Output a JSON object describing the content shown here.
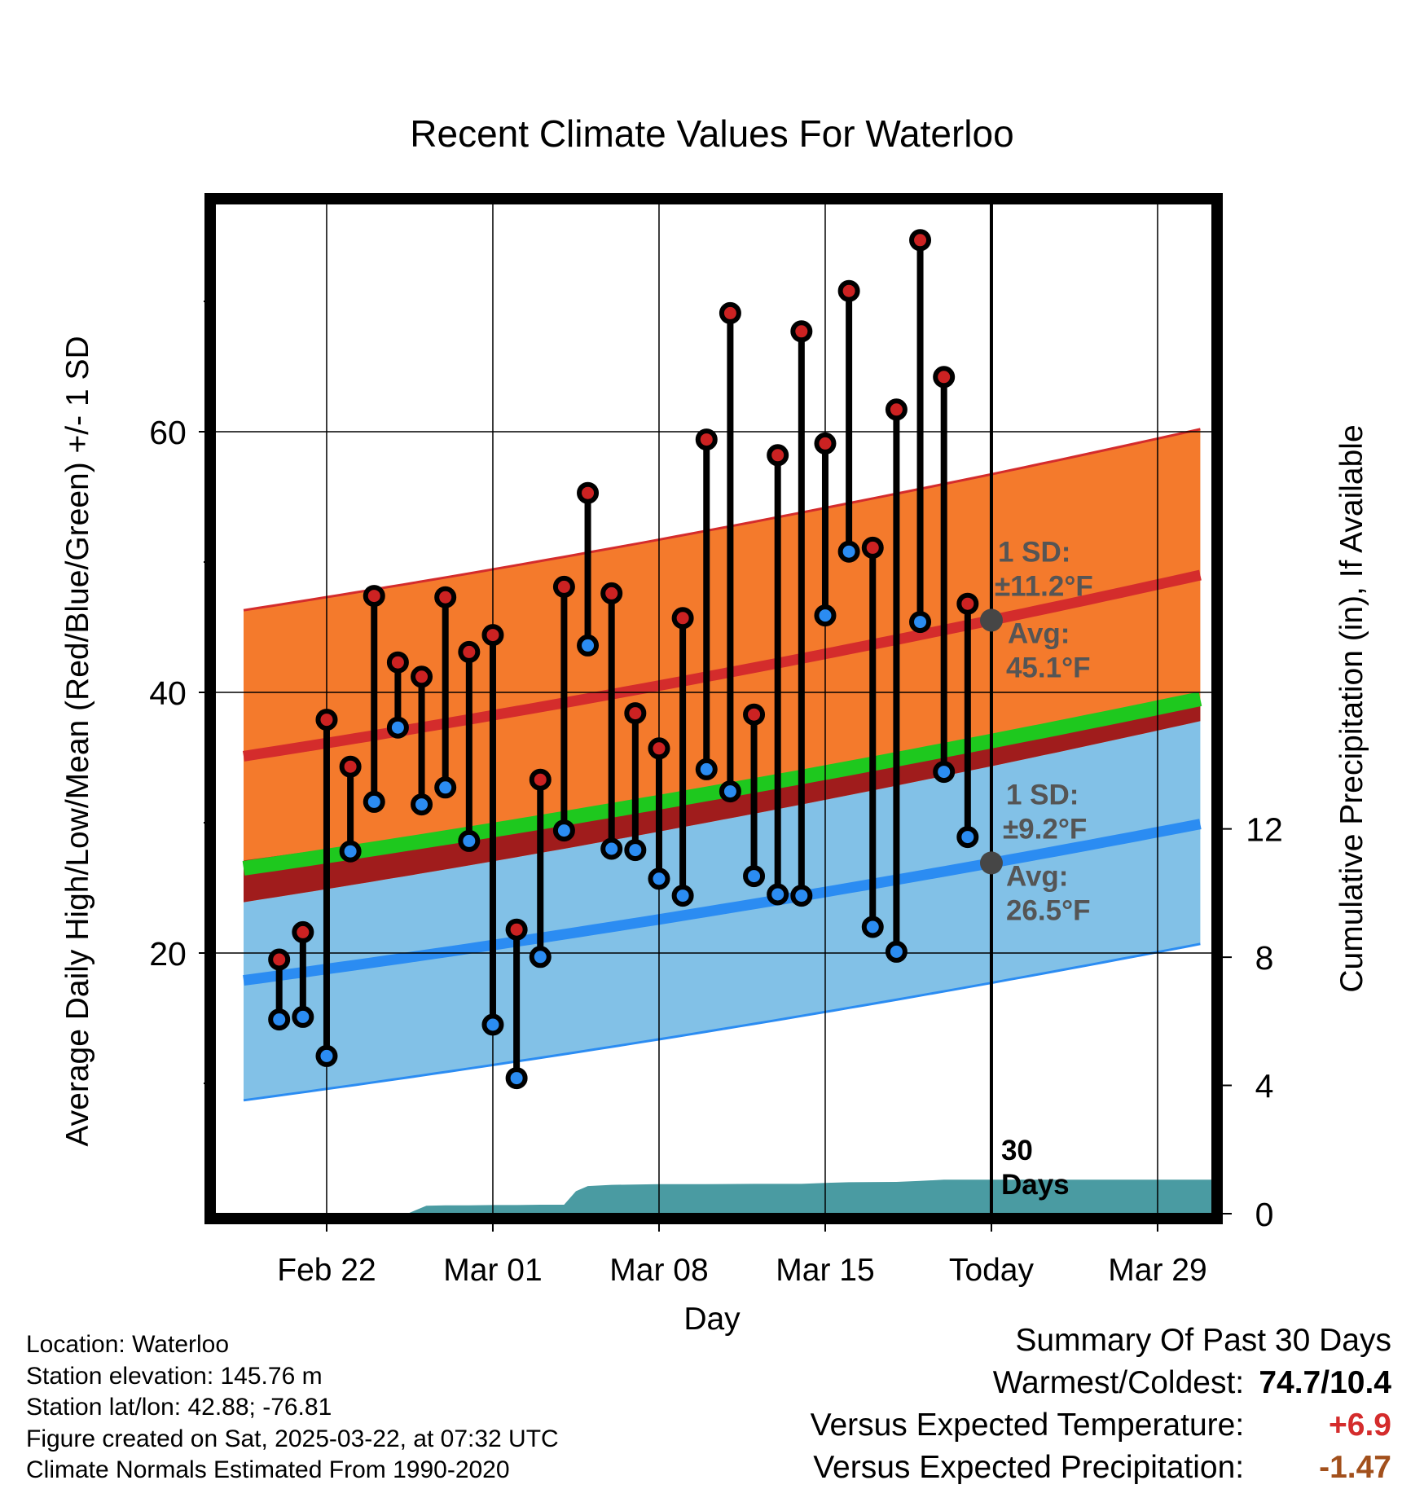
{
  "chart_data": {
    "type": "line",
    "title": "Recent Climate Values For Waterloo",
    "xlabel": "Day",
    "ylabel": "Average Daily High/Low/Mean (Red/Blue/Green) +/- 1 SD",
    "y2label": "Cumulative Precipitation (in), If Available",
    "x_ticks": [
      {
        "day": 4,
        "label": "Feb 22"
      },
      {
        "day": 11,
        "label": "Mar 01"
      },
      {
        "day": 18,
        "label": "Mar 08"
      },
      {
        "day": 25,
        "label": "Mar 15"
      },
      {
        "day": 32,
        "label": "Today"
      },
      {
        "day": 39,
        "label": "Mar 29"
      }
    ],
    "xlim": [
      -0.7,
      41.3
    ],
    "ylim": [
      0,
      77.5
    ],
    "y_ticks": [
      20,
      40,
      60
    ],
    "y_minor_ticks": [
      10,
      30,
      50,
      70
    ],
    "y2lim": [
      0,
      31.5
    ],
    "y2_ticks": [
      0,
      4,
      8,
      12
    ],
    "today_day": 32,
    "normals": {
      "day_range": [
        0.5,
        40.8
      ],
      "high_avg": [
        35.1,
        49.0
      ],
      "high_sd": 11.2,
      "low_avg": [
        17.9,
        29.9
      ],
      "low_sd": 9.2,
      "mean_avg": [
        26.5,
        39.5
      ]
    },
    "daily_days": [
      2,
      3,
      4,
      5,
      6,
      7,
      8,
      9,
      10,
      11,
      12,
      13,
      14,
      15,
      16,
      17,
      18,
      19,
      20,
      21,
      22,
      23,
      24,
      25,
      26,
      27,
      28,
      29,
      30,
      31
    ],
    "daily_high": [
      19.5,
      21.6,
      37.9,
      34.3,
      47.4,
      42.3,
      41.2,
      47.3,
      43.1,
      44.4,
      21.8,
      33.3,
      48.1,
      55.3,
      47.6,
      38.4,
      35.7,
      45.7,
      59.4,
      69.1,
      38.3,
      58.2,
      67.7,
      59.1,
      70.8,
      51.1,
      61.7,
      74.7,
      64.2,
      46.8
    ],
    "daily_low": [
      14.9,
      15.1,
      12.1,
      27.8,
      31.6,
      37.3,
      31.4,
      32.7,
      28.6,
      14.5,
      10.4,
      19.7,
      29.4,
      43.6,
      28.0,
      27.9,
      25.7,
      24.4,
      34.1,
      32.4,
      25.9,
      24.5,
      24.4,
      45.9,
      50.8,
      22.0,
      20.1,
      45.4,
      33.9,
      28.9
    ],
    "precip_cumulative": [
      [
        7.4,
        0
      ],
      [
        8.2,
        0.25
      ],
      [
        9.0,
        0.26
      ],
      [
        10.0,
        0.26
      ],
      [
        11.0,
        0.27
      ],
      [
        12.0,
        0.27
      ],
      [
        13.0,
        0.28
      ],
      [
        14.0,
        0.28
      ],
      [
        14.5,
        0.7
      ],
      [
        15.0,
        0.86
      ],
      [
        16.0,
        0.9
      ],
      [
        18.0,
        0.92
      ],
      [
        20.0,
        0.92
      ],
      [
        22.0,
        0.93
      ],
      [
        24.0,
        0.93
      ],
      [
        25.0,
        0.96
      ],
      [
        26.0,
        0.98
      ],
      [
        28.0,
        0.99
      ],
      [
        29.0,
        1.02
      ],
      [
        30.0,
        1.06
      ],
      [
        32.0,
        1.06
      ],
      [
        34.0,
        1.06
      ],
      [
        41.3,
        1.06
      ]
    ],
    "annotations": {
      "high_sd_label": "1 SD:",
      "high_sd_value": "±11.2°F",
      "high_avg_label": "Avg:",
      "high_avg_value": "45.1°F",
      "low_sd_label": "1 SD:",
      "low_sd_value": "±9.2°F",
      "low_avg_label": "Avg:",
      "low_avg_value": "26.5°F",
      "period_label_1": "30",
      "period_label_2": "Days"
    },
    "colors": {
      "high_band": "#f47a2c",
      "high_line": "#d42c2c",
      "low_band": "#82c1e7",
      "low_line": "#2b8cf2",
      "mean_line": "#1ec81e",
      "overlap": "#a01c1c",
      "precip": "#4a9ba2",
      "today_marker": "#464646",
      "annotation_text": "#555555",
      "high_marker": "#cc2222",
      "low_marker": "#2b8cf2"
    }
  },
  "info": {
    "location": "Location: Waterloo",
    "elevation": "Station elevation: 145.76 m",
    "latlon": "Station lat/lon: 42.88; -76.81",
    "created": "Figure created on Sat, 2025-03-22, at 07:32 UTC",
    "normals": "Climate Normals Estimated From 1990-2020"
  },
  "summary": {
    "title": "Summary Of Past 30 Days",
    "warmest_label": "Warmest/Coldest:",
    "warmest_value": "74.7/10.4",
    "temp_label": "Versus Expected Temperature:",
    "temp_value": "+6.9",
    "precip_label": "Versus Expected Precipitation:",
    "precip_value": "-1.47"
  }
}
